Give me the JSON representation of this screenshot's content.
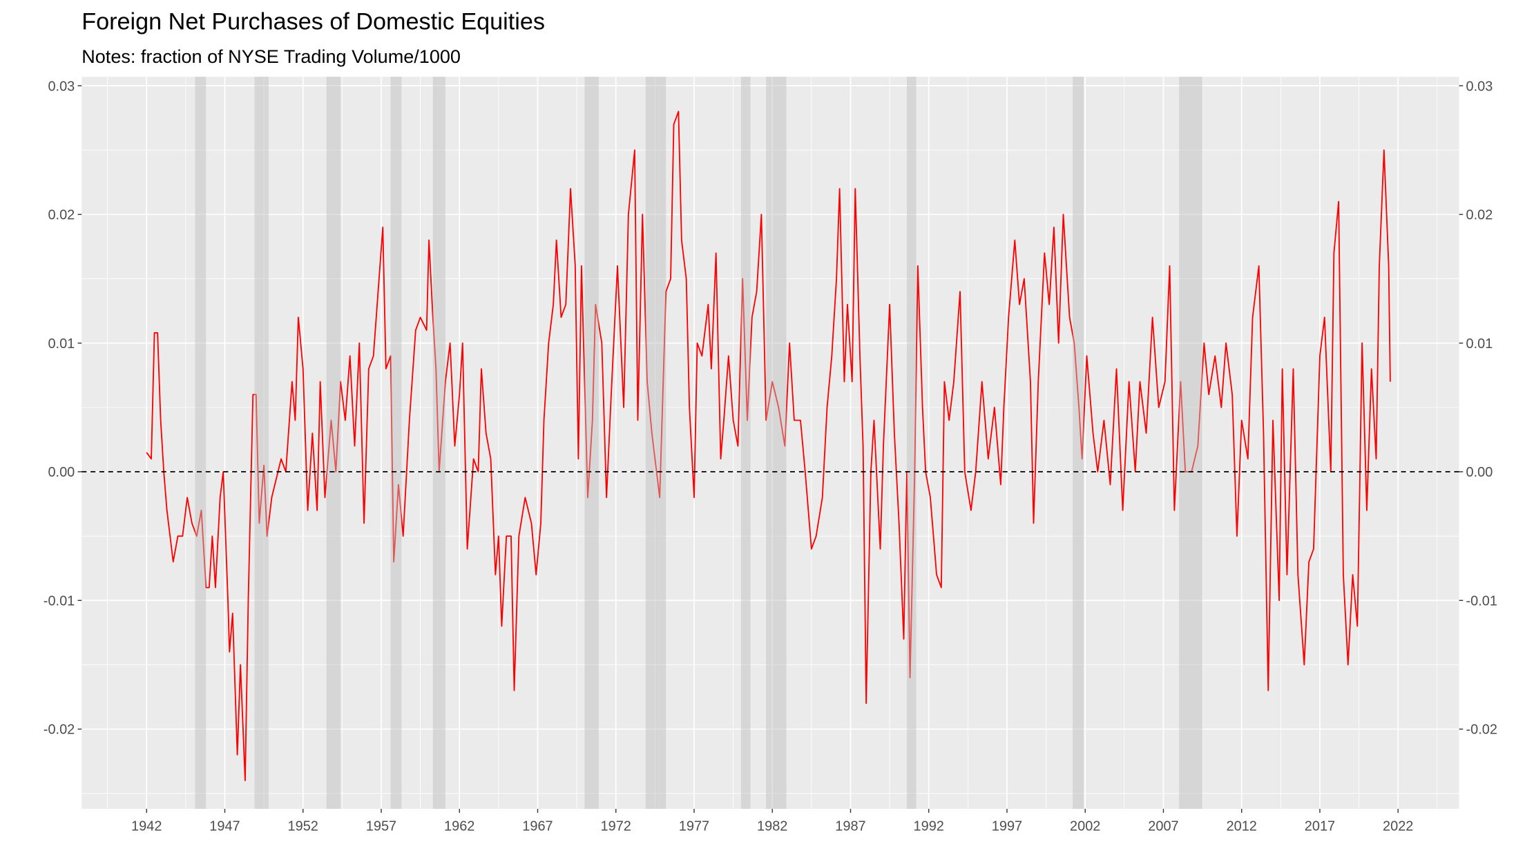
{
  "chart_data": {
    "type": "line",
    "title": "Foreign Net Purchases of Domestic Equities",
    "subtitle": "Notes: fraction of NYSE Trading Volume/1000",
    "color": "#ff0000",
    "hline": 0,
    "grid": true,
    "xlim": [
      1937.85,
      2025.9
    ],
    "ylim": [
      -0.0262,
      0.0307
    ],
    "xticks": [
      1942,
      1947,
      1952,
      1957,
      1962,
      1967,
      1972,
      1977,
      1982,
      1987,
      1992,
      1997,
      2002,
      2007,
      2012,
      2017,
      2022
    ],
    "yticks": [
      -0.02,
      -0.01,
      {
        "value": 0,
        "label": "0.00"
      },
      0.01,
      0.02,
      0.03
    ],
    "shaded_periods": [
      [
        1945.1,
        1945.8
      ],
      [
        1948.9,
        1949.8
      ],
      [
        1953.5,
        1954.4
      ],
      [
        1957.6,
        1958.3
      ],
      [
        1960.3,
        1961.1
      ],
      [
        1970.0,
        1970.9
      ],
      [
        1973.9,
        1975.2
      ],
      [
        1980.0,
        1980.6
      ],
      [
        1981.6,
        1982.9
      ],
      [
        1990.6,
        1991.2
      ],
      [
        2001.2,
        2001.9
      ],
      [
        2008.0,
        2009.5
      ]
    ],
    "x": [
      1942.0,
      1942.3,
      1942.5,
      1942.7,
      1942.9,
      1943.1,
      1943.3,
      1943.7,
      1944.0,
      1944.3,
      1944.6,
      1944.9,
      1945.2,
      1945.5,
      1945.8,
      1946.0,
      1946.2,
      1946.4,
      1946.7,
      1946.9,
      1947.2,
      1947.3,
      1947.5,
      1947.8,
      1948.0,
      1948.3,
      1948.5,
      1948.8,
      1949.0,
      1949.2,
      1949.5,
      1949.7,
      1950.0,
      1950.2,
      1950.6,
      1950.9,
      1951.3,
      1951.5,
      1951.7,
      1952.0,
      1952.3,
      1952.6,
      1952.9,
      1953.1,
      1953.4,
      1953.8,
      1954.1,
      1954.4,
      1954.7,
      1955.0,
      1955.3,
      1955.6,
      1955.9,
      1956.2,
      1956.5,
      1956.8,
      1957.1,
      1957.3,
      1957.6,
      1957.8,
      1958.1,
      1958.4,
      1958.8,
      1959.2,
      1959.5,
      1959.9,
      1960.05,
      1960.3,
      1960.5,
      1960.7,
      1961.1,
      1961.4,
      1961.7,
      1962.0,
      1962.2,
      1962.5,
      1962.9,
      1963.2,
      1963.4,
      1963.7,
      1964.0,
      1964.3,
      1964.5,
      1964.7,
      1965.0,
      1965.3,
      1965.5,
      1965.8,
      1966.2,
      1966.6,
      1966.9,
      1967.2,
      1967.4,
      1967.7,
      1968.0,
      1968.2,
      1968.5,
      1968.8,
      1969.1,
      1969.4,
      1969.6,
      1969.8,
      1970.2,
      1970.5,
      1970.7,
      1971.1,
      1971.4,
      1971.7,
      1972.1,
      1972.5,
      1972.8,
      1973.2,
      1973.4,
      1973.7,
      1974.0,
      1974.3,
      1974.6,
      1974.8,
      1975.2,
      1975.5,
      1975.7,
      1976.0,
      1976.2,
      1976.5,
      1976.7,
      1977.0,
      1977.2,
      1977.5,
      1977.9,
      1978.1,
      1978.4,
      1978.7,
      1978.9,
      1979.2,
      1979.5,
      1979.8,
      1980.1,
      1980.4,
      1980.7,
      1981.0,
      1981.3,
      1981.6,
      1982.0,
      1982.4,
      1982.8,
      1983.1,
      1983.4,
      1983.8,
      1984.1,
      1984.5,
      1984.8,
      1985.2,
      1985.5,
      1985.8,
      1986.1,
      1986.3,
      1986.6,
      1986.8,
      1987.1,
      1987.3,
      1987.6,
      1987.8,
      1988.0,
      1988.3,
      1988.5,
      1988.9,
      1989.1,
      1989.5,
      1989.8,
      1990.1,
      1990.4,
      1990.6,
      1990.8,
      1991.1,
      1991.3,
      1991.6,
      1991.8,
      1992.1,
      1992.5,
      1992.8,
      1993.0,
      1993.3,
      1993.6,
      1994.0,
      1994.3,
      1994.7,
      1995.0,
      1995.4,
      1995.8,
      1996.2,
      1996.6,
      1996.8,
      1997.1,
      1997.5,
      1997.8,
      1998.1,
      1998.5,
      1998.7,
      1999.0,
      1999.4,
      1999.7,
      2000.0,
      2000.3,
      2000.6,
      2001.0,
      2001.3,
      2001.6,
      2001.8,
      2002.1,
      2002.5,
      2002.8,
      2003.2,
      2003.6,
      2004.0,
      2004.4,
      2004.8,
      2005.2,
      2005.5,
      2005.9,
      2006.3,
      2006.7,
      2007.1,
      2007.4,
      2007.7,
      2008.1,
      2008.4,
      2008.8,
      2009.2,
      2009.6,
      2009.9,
      2010.3,
      2010.7,
      2011.0,
      2011.4,
      2011.7,
      2012.0,
      2012.4,
      2012.7,
      2013.1,
      2013.4,
      2013.7,
      2014.0,
      2014.4,
      2014.6,
      2014.9,
      2015.3,
      2015.6,
      2016.0,
      2016.3,
      2016.6,
      2017.0,
      2017.3,
      2017.7,
      2017.9,
      2018.2,
      2018.5,
      2018.8,
      2019.1,
      2019.4,
      2019.7,
      2020.0,
      2020.3,
      2020.6,
      2020.8,
      2021.1,
      2021.4,
      2021.5
    ],
    "values": [
      0.0015,
      0.001,
      0.0108,
      0.0108,
      0.004,
      0.0,
      -0.003,
      -0.007,
      -0.005,
      -0.005,
      -0.002,
      -0.004,
      -0.005,
      -0.003,
      -0.009,
      -0.009,
      -0.005,
      -0.009,
      -0.002,
      0.0,
      -0.01,
      -0.014,
      -0.011,
      -0.022,
      -0.015,
      -0.024,
      -0.01,
      0.006,
      0.006,
      -0.004,
      0.0005,
      -0.005,
      -0.002,
      -0.001,
      0.001,
      0.0,
      0.007,
      0.004,
      0.012,
      0.008,
      -0.003,
      0.003,
      -0.003,
      0.007,
      -0.002,
      0.004,
      0.0,
      0.007,
      0.004,
      0.009,
      0.002,
      0.01,
      -0.004,
      0.008,
      0.009,
      0.014,
      0.019,
      0.008,
      0.009,
      -0.007,
      -0.001,
      -0.005,
      0.004,
      0.011,
      0.012,
      0.011,
      0.018,
      0.012,
      0.008,
      0.0,
      0.007,
      0.01,
      0.002,
      0.006,
      0.01,
      -0.006,
      0.001,
      0.0,
      0.008,
      0.003,
      0.001,
      -0.008,
      -0.005,
      -0.012,
      -0.005,
      -0.005,
      -0.017,
      -0.005,
      -0.002,
      -0.004,
      -0.008,
      -0.004,
      0.004,
      0.01,
      0.013,
      0.018,
      0.012,
      0.013,
      0.022,
      0.016,
      0.001,
      0.016,
      -0.002,
      0.004,
      0.013,
      0.01,
      -0.002,
      0.006,
      0.016,
      0.005,
      0.02,
      0.025,
      0.004,
      0.02,
      0.007,
      0.003,
      0.0,
      -0.002,
      0.014,
      0.015,
      0.027,
      0.028,
      0.018,
      0.015,
      0.005,
      -0.002,
      0.01,
      0.009,
      0.013,
      0.008,
      0.017,
      0.001,
      0.004,
      0.009,
      0.004,
      0.002,
      0.015,
      0.004,
      0.012,
      0.014,
      0.02,
      0.004,
      0.007,
      0.005,
      0.002,
      0.01,
      0.004,
      0.004,
      0.0,
      -0.006,
      -0.005,
      -0.002,
      0.005,
      0.009,
      0.015,
      0.022,
      0.007,
      0.013,
      0.007,
      0.022,
      0.009,
      0.002,
      -0.018,
      0.0,
      0.004,
      -0.006,
      0.002,
      0.013,
      0.003,
      -0.004,
      -0.013,
      0.0,
      -0.016,
      0.0,
      0.016,
      0.005,
      0.0,
      -0.002,
      -0.008,
      -0.009,
      0.007,
      0.004,
      0.007,
      0.014,
      0.0,
      -0.003,
      0.0,
      0.007,
      0.001,
      0.005,
      -0.001,
      0.005,
      0.012,
      0.018,
      0.013,
      0.015,
      0.007,
      -0.004,
      0.007,
      0.017,
      0.013,
      0.019,
      0.01,
      0.02,
      0.012,
      0.01,
      0.005,
      0.001,
      0.009,
      0.003,
      0.0,
      0.004,
      -0.001,
      0.008,
      -0.003,
      0.007,
      0.0,
      0.007,
      0.003,
      0.012,
      0.005,
      0.007,
      0.016,
      -0.003,
      0.007,
      0.0,
      0.0,
      0.002,
      0.01,
      0.006,
      0.009,
      0.005,
      0.01,
      0.006,
      -0.005,
      0.004,
      0.001,
      0.012,
      0.016,
      0.003,
      -0.017,
      0.004,
      -0.01,
      0.008,
      -0.008,
      0.008,
      -0.008,
      -0.015,
      -0.007,
      -0.006,
      0.009,
      0.012,
      0.0,
      0.017,
      0.021,
      -0.008,
      -0.015,
      -0.008,
      -0.012,
      0.01,
      -0.003,
      0.008,
      0.001,
      0.016,
      0.025,
      0.016,
      0.007
    ]
  }
}
